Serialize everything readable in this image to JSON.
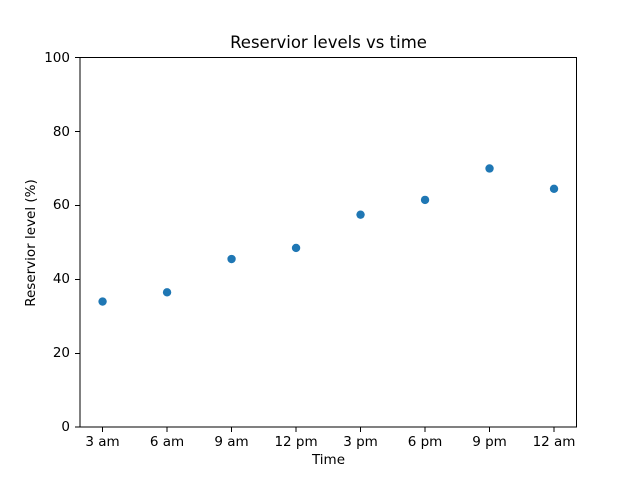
{
  "figure": {
    "background": "#ffffff",
    "text_color": "#000000",
    "spine_color": "#000000"
  },
  "chart_data": {
    "type": "scatter",
    "title": "Reservior levels vs time",
    "xlabel": "Time",
    "ylabel": "Reservior level (%)",
    "categories": [
      "3 am",
      "6 am",
      "9 am",
      "12 pm",
      "3 pm",
      "6 pm",
      "9 pm",
      "12 am"
    ],
    "values": [
      34,
      36.5,
      45.5,
      48.5,
      57.5,
      61.5,
      70,
      64.5
    ],
    "yticks": [
      0,
      20,
      40,
      60,
      80,
      100
    ],
    "ylim": [
      0,
      100
    ],
    "xlim": [
      -0.35,
      7.35
    ],
    "grid": false,
    "legend": "none",
    "marker_color": "#1f77b4",
    "marker_radius": 4.2
  }
}
